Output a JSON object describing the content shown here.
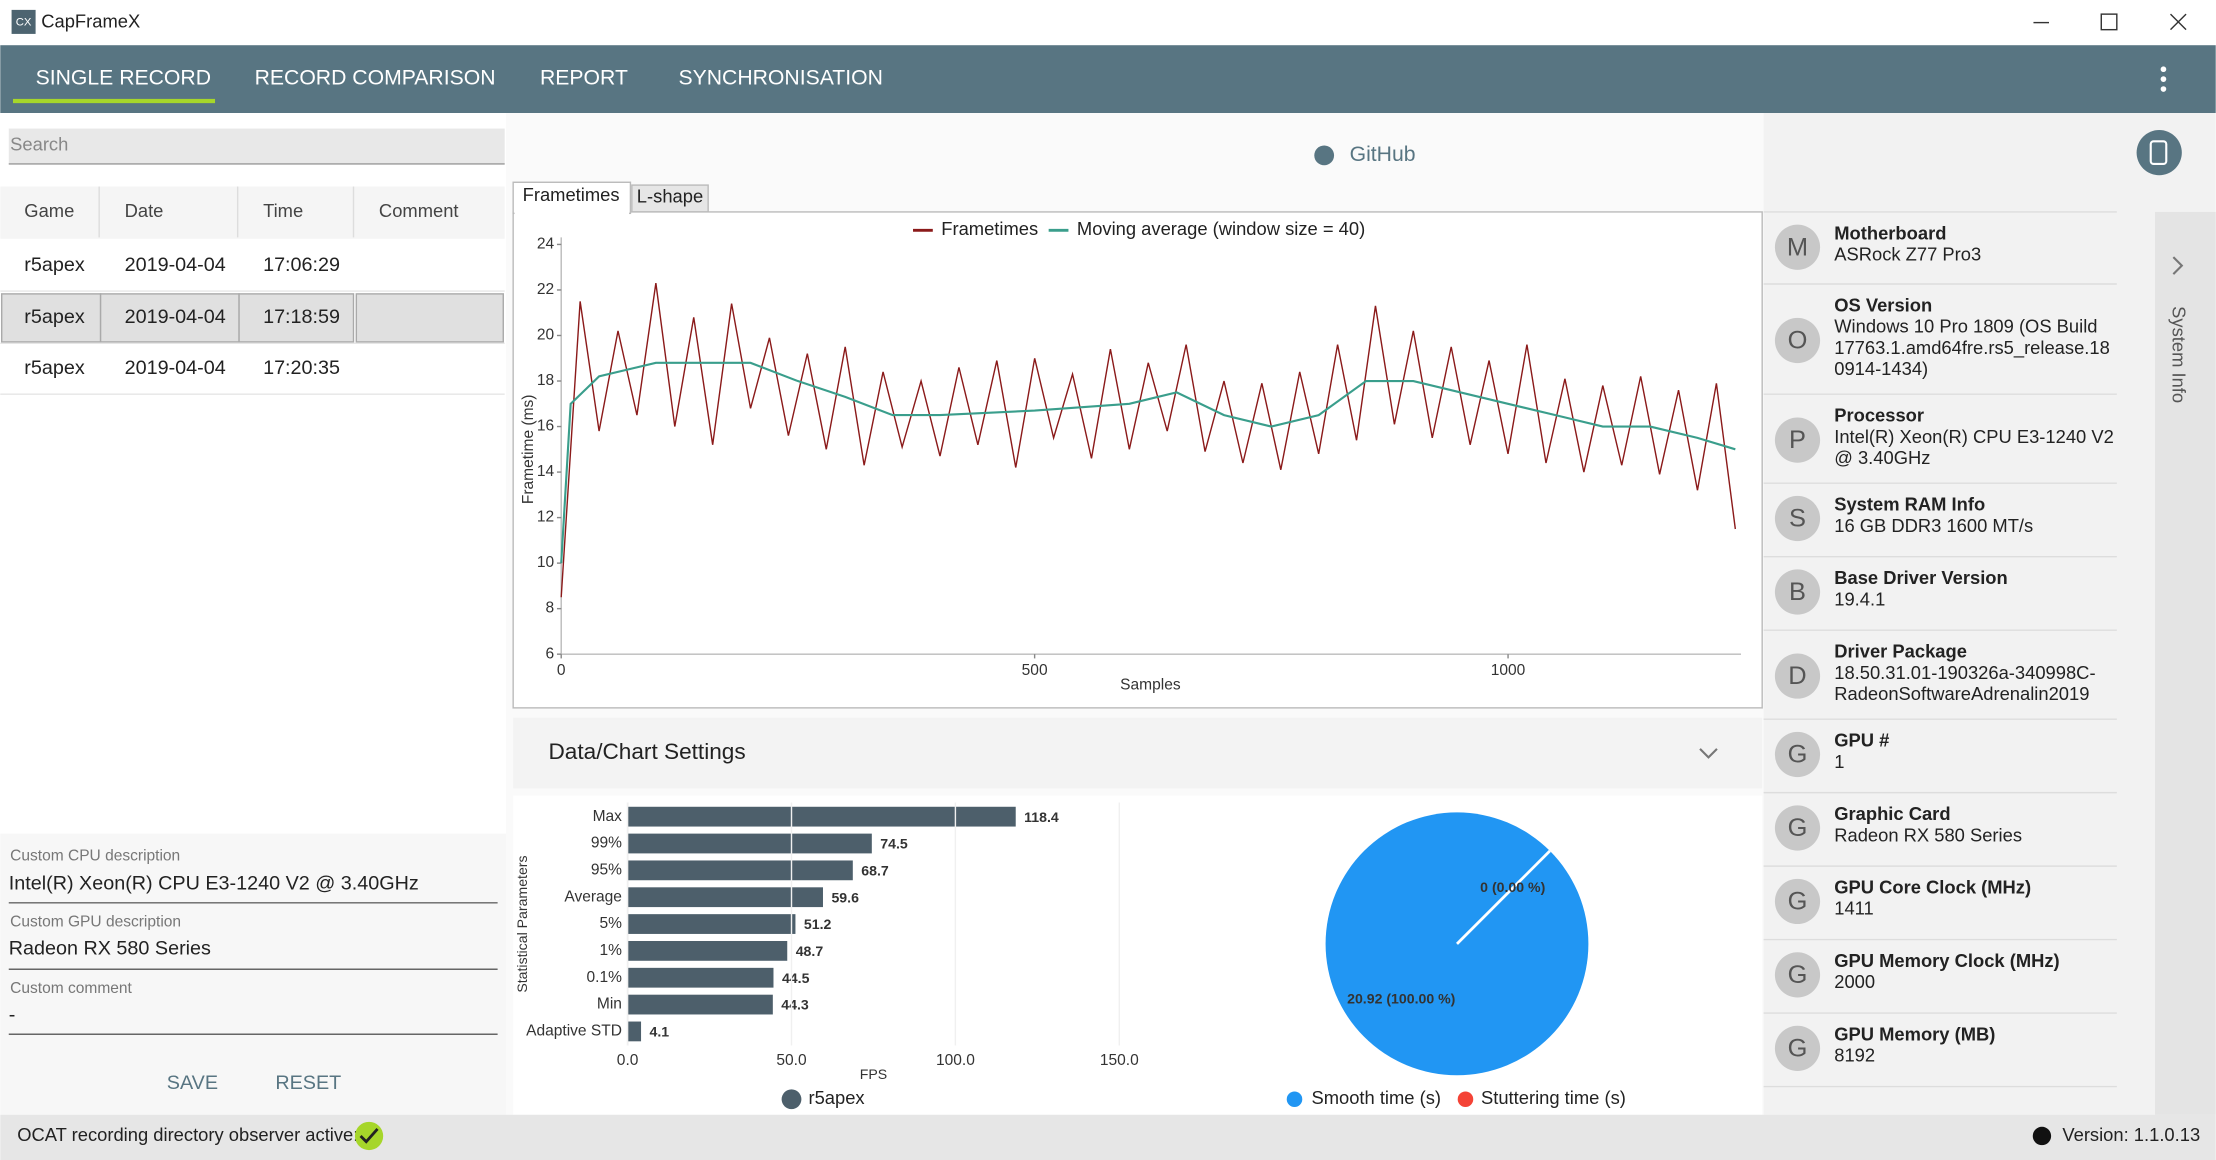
{
  "window": {
    "icon": "CX",
    "title": "CapFrameX"
  },
  "nav": {
    "tabs": [
      "SINGLE RECORD",
      "RECORD COMPARISON",
      "REPORT",
      "SYNCHRONISATION"
    ]
  },
  "search": {
    "placeholder": "Search"
  },
  "records": {
    "columns": [
      "Game",
      "Date",
      "Time",
      "Comment"
    ],
    "rows": [
      [
        "r5apex",
        "2019-04-04",
        "17:06:29"
      ],
      [
        "r5apex",
        "2019-04-04",
        "17:18:59"
      ],
      [
        "r5apex",
        "2019-04-04",
        "17:20:35"
      ]
    ]
  },
  "custom": {
    "cpu_label": "Custom CPU description",
    "cpu": "Intel(R) Xeon(R) CPU E3-1240 V2 @ 3.40GHz",
    "gpu_label": "Custom GPU description",
    "gpu": "Radeon RX 580 Series",
    "comment_label": "Custom comment",
    "comment": "-"
  },
  "buttons": [
    "SAVE",
    "RESET"
  ],
  "github": "GitHub",
  "chart_tabs": [
    "Frametimes",
    "L-shape"
  ],
  "settings_title": "Data/Chart Settings",
  "status": {
    "observer": "OCAT recording directory observer active:",
    "version": "Version: 1.1.0.13"
  },
  "system_info": {
    "title": "System Info",
    "items": [
      {
        "avatar": "M",
        "label": "Motherboard",
        "lines": [
          "ASRock Z77 Pro3"
        ]
      },
      {
        "avatar": "O",
        "label": "OS Version",
        "lines": [
          "Windows 10 Pro 1809 (OS Build",
          "17763.1.amd64fre.rs5_release.18",
          "0914-1434)"
        ]
      },
      {
        "avatar": "P",
        "label": "Processor",
        "lines": [
          "Intel(R) Xeon(R) CPU E3-1240 V2",
          "@ 3.40GHz"
        ]
      },
      {
        "avatar": "S",
        "label": "System RAM Info",
        "lines": [
          "16 GB DDR3 1600 MT/s"
        ]
      },
      {
        "avatar": "B",
        "label": "Base Driver Version",
        "lines": [
          "19.4.1"
        ]
      },
      {
        "avatar": "D",
        "label": "Driver Package",
        "lines": [
          "18.50.31.01-190326a-340998C-",
          "RadeonSoftwareAdrenalin2019"
        ]
      },
      {
        "avatar": "G",
        "label": "GPU #",
        "lines": [
          "1"
        ]
      },
      {
        "avatar": "G",
        "label": "Graphic Card",
        "lines": [
          "Radeon RX 580 Series"
        ]
      },
      {
        "avatar": "G",
        "label": "GPU Core Clock (MHz)",
        "lines": [
          "1411"
        ]
      },
      {
        "avatar": "G",
        "label": "GPU Memory Clock (MHz)",
        "lines": [
          "2000"
        ]
      },
      {
        "avatar": "G",
        "label": "GPU Memory (MB)",
        "lines": [
          "8192"
        ]
      }
    ]
  },
  "chart_data": [
    {
      "type": "line",
      "xlabel": "Samples",
      "ylabel": "Frametime (ms)",
      "xlim": [
        0,
        1246
      ],
      "ylim": [
        6,
        24
      ],
      "xticks": [
        0,
        500,
        1000
      ],
      "yticks": [
        6,
        8,
        10,
        12,
        14,
        16,
        18,
        20,
        22,
        24
      ],
      "series": [
        {
          "name": "Frametimes",
          "color": "#8b1a1a",
          "x": [
            0,
            20,
            40,
            60,
            80,
            100,
            120,
            140,
            160,
            180,
            200,
            220,
            240,
            260,
            280,
            300,
            320,
            340,
            360,
            380,
            400,
            420,
            440,
            460,
            480,
            500,
            520,
            540,
            560,
            580,
            600,
            620,
            640,
            660,
            680,
            700,
            720,
            740,
            760,
            780,
            800,
            820,
            840,
            860,
            880,
            900,
            920,
            940,
            960,
            980,
            1000,
            1020,
            1040,
            1060,
            1080,
            1100,
            1120,
            1140,
            1160,
            1180,
            1200,
            1220,
            1240
          ],
          "values": [
            8.5,
            21.5,
            15.8,
            20.2,
            16.5,
            22.3,
            16.0,
            20.8,
            15.2,
            21.4,
            16.8,
            19.9,
            15.6,
            19.2,
            15.0,
            19.5,
            14.3,
            18.4,
            15.1,
            18.0,
            14.7,
            18.6,
            15.2,
            18.9,
            14.2,
            19.0,
            15.5,
            18.3,
            14.6,
            19.4,
            15.0,
            18.8,
            15.8,
            19.6,
            14.9,
            18.0,
            14.4,
            17.9,
            14.1,
            18.4,
            14.8,
            19.6,
            15.4,
            21.3,
            16.1,
            20.2,
            15.5,
            19.5,
            15.2,
            18.9,
            14.8,
            19.6,
            14.4,
            18.1,
            14.0,
            17.8,
            14.3,
            18.2,
            13.9,
            17.6,
            13.2,
            17.9,
            11.5
          ]
        },
        {
          "name": "Moving average (window size = 40)",
          "color": "#3a9e8c",
          "x": [
            0,
            10,
            40,
            100,
            200,
            250,
            300,
            350,
            400,
            500,
            600,
            650,
            700,
            750,
            800,
            850,
            900,
            1000,
            1050,
            1100,
            1150,
            1200,
            1240
          ],
          "values": [
            10,
            17,
            18.2,
            18.8,
            18.8,
            18,
            17.3,
            16.5,
            16.5,
            16.7,
            17,
            17.5,
            16.5,
            16,
            16.5,
            18,
            18,
            17,
            16.5,
            16,
            16,
            15.5,
            15
          ]
        }
      ]
    },
    {
      "type": "bar",
      "orientation": "horizontal",
      "ylabel": "Statistical Parameters",
      "xlabel": "FPS",
      "categories": [
        "Max",
        "99%",
        "95%",
        "Average",
        "5%",
        "1%",
        "0.1%",
        "Min",
        "Adaptive STD"
      ],
      "series": [
        {
          "name": "r5apex",
          "color": "#4d5f6b",
          "values": [
            118.4,
            74.5,
            68.7,
            59.6,
            51.2,
            48.7,
            44.5,
            44.3,
            4.1
          ]
        }
      ],
      "xlim": [
        0,
        150
      ],
      "xticks": [
        {
          "value": 0,
          "label": "0.0"
        },
        {
          "value": 50,
          "label": "50.0"
        },
        {
          "value": 100,
          "label": "100.0"
        },
        {
          "value": 150,
          "label": "150.0"
        }
      ]
    },
    {
      "type": "pie",
      "labels": [
        "Smooth time (s)",
        "Stuttering time (s)"
      ],
      "values": [
        20.92,
        0
      ],
      "value_labels": [
        "20.92 (100.00 %)",
        "0 (0.00 %)"
      ],
      "colors": [
        "#2196f3",
        "#f44336"
      ]
    }
  ]
}
